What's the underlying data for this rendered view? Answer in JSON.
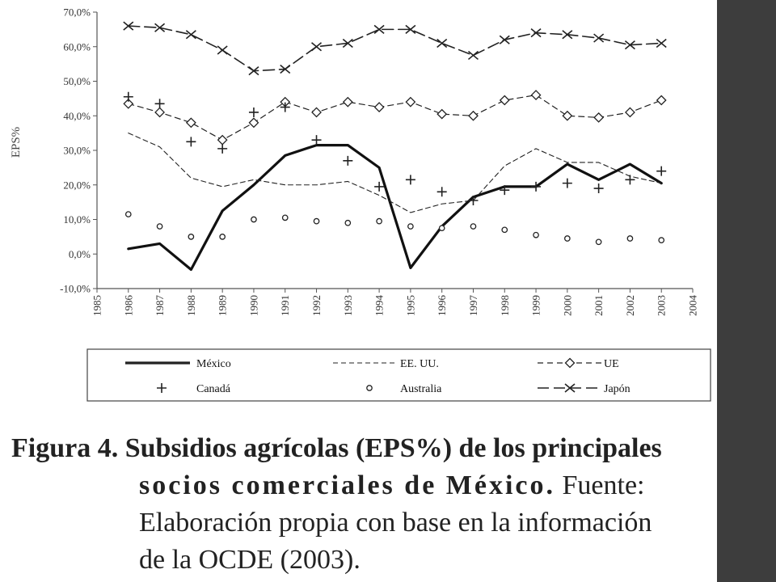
{
  "colors": {
    "sidebar": "#3d3d3d",
    "mexico": "#111111",
    "series": "#222222",
    "axis": "#555555"
  },
  "caption": {
    "line1": "Figura 4. Subsidios agrícolas (EPS%) de los principales",
    "line2_bold": "socios comerciales de México.",
    "line2_rest": " Fuente:",
    "line3": "Elaboración propia con base en la información",
    "line4": "de la OCDE (2003)."
  },
  "chart_data": {
    "type": "line",
    "ylabel": "EPS%",
    "xlabel": "",
    "x_ticks": [
      "1985",
      "1986",
      "1987",
      "1988",
      "1989",
      "1990",
      "1991",
      "1992",
      "1993",
      "1994",
      "1995",
      "1996",
      "1997",
      "1998",
      "1999",
      "2000",
      "2001",
      "2002",
      "2003",
      "2004"
    ],
    "y_ticks": [
      "-10,0%",
      "0,0%",
      "10,0%",
      "20,0%",
      "30,0%",
      "40,0%",
      "50,0%",
      "60,0%",
      "70,0%"
    ],
    "xlim": [
      1985,
      2004
    ],
    "ylim": [
      -10,
      70
    ],
    "grid": false,
    "legend_position": "bottom",
    "x": [
      1986,
      1987,
      1988,
      1989,
      1990,
      1991,
      1992,
      1993,
      1994,
      1995,
      1996,
      1997,
      1998,
      1999,
      2000,
      2001,
      2002,
      2003
    ],
    "series": [
      {
        "name": "México",
        "style": "solid-thick",
        "marker": "none",
        "values": [
          1.5,
          3,
          -4.5,
          12.5,
          20,
          28.5,
          31.5,
          31.5,
          25,
          -4,
          8,
          16.5,
          19.5,
          19.5,
          26,
          21.5,
          26,
          20.5
        ]
      },
      {
        "name": "EE. UU.",
        "style": "dashed-thin",
        "marker": "none",
        "values": [
          35,
          31,
          22,
          19.5,
          21.5,
          20,
          20,
          21,
          17,
          12,
          14.5,
          15.5,
          25.5,
          30.5,
          26.5,
          26.5,
          22.5,
          20.5
        ]
      },
      {
        "name": "UE",
        "style": "dashed",
        "marker": "diamond",
        "values": [
          43.5,
          41,
          38,
          33,
          38,
          44,
          41,
          44,
          42.5,
          44,
          40.5,
          40,
          44.5,
          46,
          40,
          39.5,
          41,
          44.5
        ]
      },
      {
        "name": "Canadá",
        "style": "none",
        "marker": "plus",
        "values": [
          45.5,
          43.5,
          32.5,
          30.5,
          41,
          42.5,
          33,
          27,
          19.5,
          21.5,
          18,
          15.5,
          18.5,
          19.5,
          20.5,
          19,
          21.5,
          24
        ]
      },
      {
        "name": "Australia",
        "style": "none",
        "marker": "circle",
        "values": [
          11.5,
          8,
          5,
          5,
          10,
          10.5,
          9.5,
          9,
          9.5,
          8,
          7.5,
          8,
          7,
          5.5,
          4.5,
          3.5,
          4.5,
          4
        ]
      },
      {
        "name": "Japón",
        "style": "long-dash",
        "marker": "x",
        "values": [
          66,
          65.5,
          63.5,
          59,
          53,
          53.5,
          60,
          61,
          65,
          65,
          61,
          57.5,
          62,
          64,
          63.5,
          62.5,
          60.5,
          61
        ]
      }
    ]
  }
}
